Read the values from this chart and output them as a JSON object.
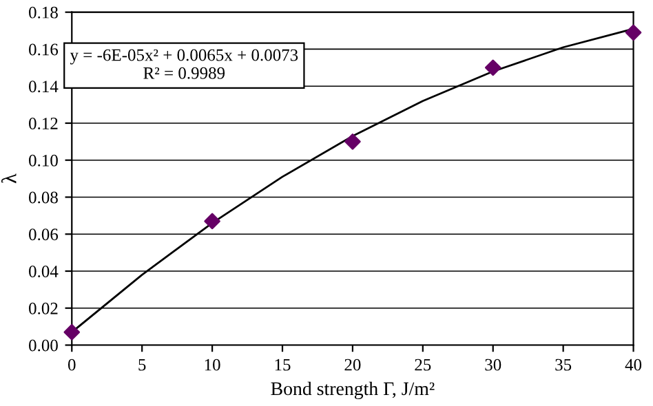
{
  "chart_data": {
    "type": "scatter",
    "xlabel": "Bond strength Γ, J/m²",
    "ylabel": "λ",
    "xlim": [
      0,
      40
    ],
    "xticks": [
      0,
      5,
      10,
      15,
      20,
      25,
      30,
      35,
      40
    ],
    "ylim": [
      0,
      0.18
    ],
    "yticks": [
      {
        "value": 0,
        "label": "0.00"
      },
      {
        "value": 0.02,
        "label": "0.02"
      },
      {
        "value": 0.04,
        "label": "0.04"
      },
      {
        "value": 0.06,
        "label": "0.06"
      },
      {
        "value": 0.08,
        "label": "0.08"
      },
      {
        "value": 0.1,
        "label": "0.10"
      },
      {
        "value": 0.12,
        "label": "0.12"
      },
      {
        "value": 0.14,
        "label": "0.14"
      },
      {
        "value": 0.16,
        "label": "0.16"
      },
      {
        "value": 0.18,
        "label": "0.18"
      }
    ],
    "grid": "y",
    "series": [
      {
        "type": "line",
        "color": "#000000",
        "marker": "none",
        "x": [
          0,
          5,
          10,
          15,
          20,
          25,
          30,
          35,
          40
        ],
        "values": [
          0.007,
          0.038,
          0.066,
          0.091,
          0.113,
          0.132,
          0.148,
          0.161,
          0.171
        ]
      },
      {
        "color": "#660066",
        "marker": "diamond",
        "x": [
          0,
          10,
          20,
          30,
          40
        ],
        "values": [
          0.007,
          0.067,
          0.11,
          0.15,
          0.169
        ]
      }
    ],
    "annotations": [
      "y = -6E-05x² + 0.0065x + 0.0073\nR² = 0.9989"
    ]
  }
}
